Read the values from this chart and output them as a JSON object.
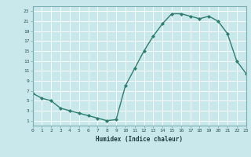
{
  "x": [
    0,
    1,
    2,
    3,
    4,
    5,
    6,
    7,
    8,
    9,
    10,
    11,
    12,
    13,
    14,
    15,
    16,
    17,
    18,
    19,
    20,
    21,
    22,
    23
  ],
  "y": [
    6.5,
    5.5,
    5.0,
    3.5,
    3.0,
    2.5,
    2.0,
    1.5,
    1.0,
    1.2,
    8.0,
    11.5,
    15.0,
    18.0,
    20.5,
    22.5,
    22.5,
    22.0,
    21.5,
    22.0,
    21.0,
    18.5,
    13.0,
    10.5
  ],
  "xlabel": "Humidex (Indice chaleur)",
  "xlim": [
    0,
    23
  ],
  "ylim": [
    0,
    24
  ],
  "yticks": [
    1,
    3,
    5,
    7,
    9,
    11,
    13,
    15,
    17,
    19,
    21,
    23
  ],
  "xticks": [
    0,
    1,
    2,
    3,
    4,
    5,
    6,
    7,
    8,
    9,
    10,
    11,
    12,
    13,
    14,
    15,
    16,
    17,
    18,
    19,
    20,
    21,
    22,
    23
  ],
  "line_color": "#2e7d6e",
  "marker_color": "#2e7d6e",
  "bg_color": "#c8e8ec",
  "grid_color": "#ffffff",
  "plot_bg": "#c8e8ec",
  "spine_color": "#7aadad",
  "tick_color": "#2e5555",
  "xlabel_color": "#1a3a3a"
}
